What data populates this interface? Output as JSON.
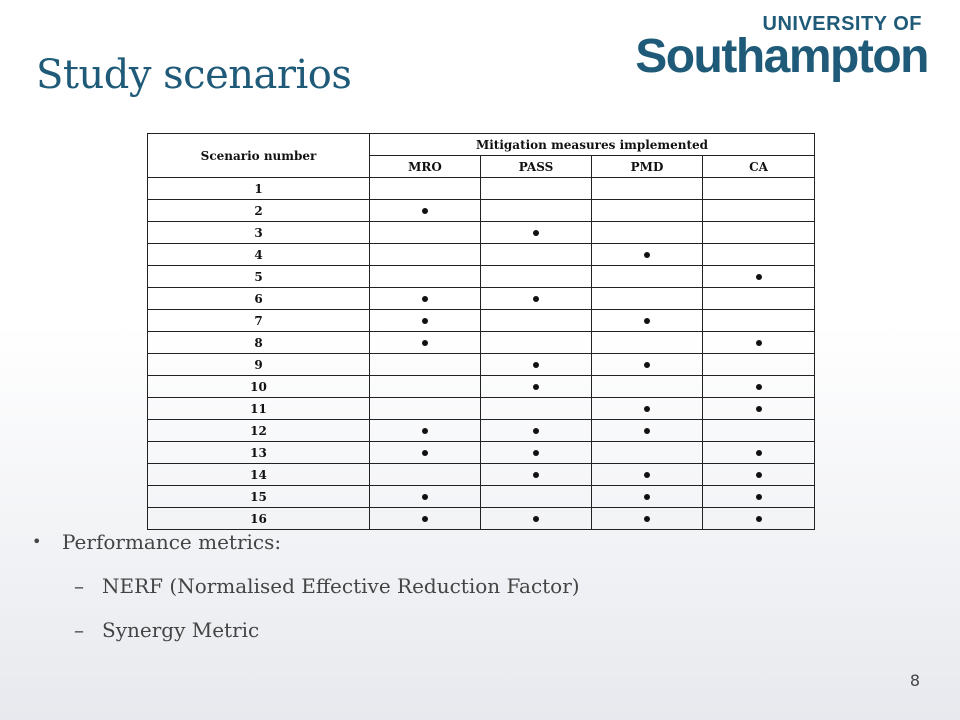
{
  "logo": {
    "top": "UNIVERSITY OF",
    "main": "Southampton"
  },
  "title": "Study scenarios",
  "table": {
    "header_scenario": "Scenario number",
    "header_group": "Mitigation measures implemented",
    "measures": [
      "MRO",
      "PASS",
      "PMD",
      "CA"
    ],
    "rows": [
      {
        "label": "1",
        "marks": [
          false,
          false,
          false,
          false
        ]
      },
      {
        "label": "2",
        "marks": [
          true,
          false,
          false,
          false
        ]
      },
      {
        "label": "3",
        "marks": [
          false,
          true,
          false,
          false
        ]
      },
      {
        "label": "4",
        "marks": [
          false,
          false,
          true,
          false
        ]
      },
      {
        "label": "5",
        "marks": [
          false,
          false,
          false,
          true
        ]
      },
      {
        "label": "6",
        "marks": [
          true,
          true,
          false,
          false
        ]
      },
      {
        "label": "7",
        "marks": [
          true,
          false,
          true,
          false
        ]
      },
      {
        "label": "8",
        "marks": [
          true,
          false,
          false,
          true
        ]
      },
      {
        "label": "9",
        "marks": [
          false,
          true,
          true,
          false
        ]
      },
      {
        "label": "10",
        "marks": [
          false,
          true,
          false,
          true
        ]
      },
      {
        "label": "11",
        "marks": [
          false,
          false,
          true,
          true
        ]
      },
      {
        "label": "12",
        "marks": [
          true,
          true,
          true,
          false
        ]
      },
      {
        "label": "13",
        "marks": [
          true,
          true,
          false,
          true
        ]
      },
      {
        "label": "14",
        "marks": [
          false,
          true,
          true,
          true
        ]
      },
      {
        "label": "15",
        "marks": [
          true,
          false,
          true,
          true
        ]
      },
      {
        "label": "16",
        "marks": [
          true,
          true,
          true,
          true
        ]
      }
    ]
  },
  "bullets": {
    "marker": "•",
    "main": "Performance metrics:",
    "dash": "–",
    "subs": [
      "NERF (Normalised Effective Reduction Factor)",
      "Synergy Metric"
    ]
  },
  "page_number": "8",
  "colors": {
    "title": "#1f5b78",
    "logo": "#1f5b78",
    "text": "#444444"
  }
}
